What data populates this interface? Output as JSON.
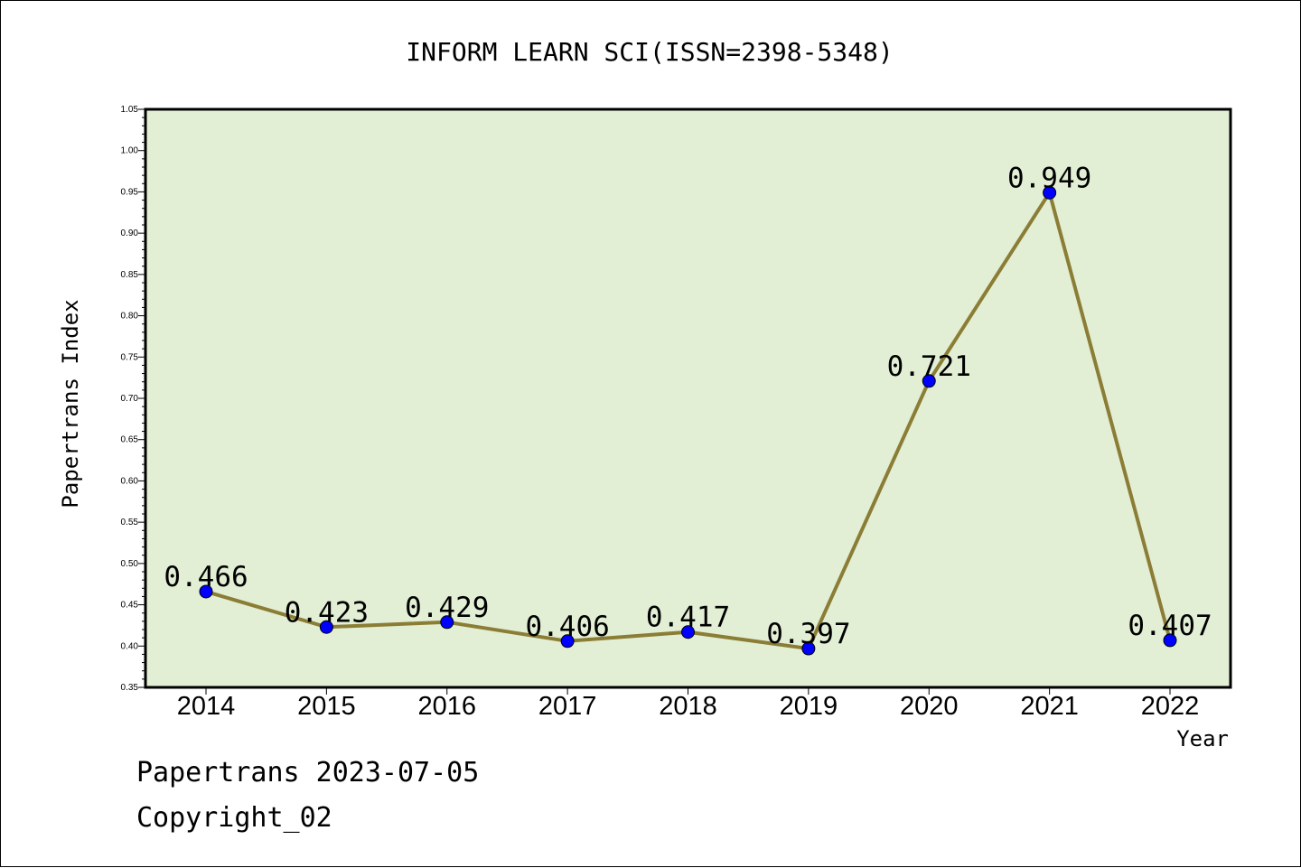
{
  "chart_data": {
    "type": "line",
    "title": "INFORM LEARN SCI(ISSN=2398-5348)",
    "xlabel": "Year",
    "ylabel": "Papertrans Index",
    "categories": [
      "2014",
      "2015",
      "2016",
      "2017",
      "2018",
      "2019",
      "2020",
      "2021",
      "2022"
    ],
    "series": [
      {
        "values": [
          0.466,
          0.423,
          0.429,
          0.406,
          0.417,
          0.397,
          0.721,
          0.949,
          0.407
        ],
        "labels": [
          "0.466",
          "0.423",
          "0.429",
          "0.406",
          "0.417",
          "0.397",
          "0.721",
          "0.949",
          "0.407"
        ],
        "line_color": "#8b7d35",
        "marker_color": "#0000ff"
      }
    ],
    "ylim": [
      0.35,
      1.05
    ],
    "yticks": [
      "0.35",
      "0.40",
      "0.45",
      "0.50",
      "0.55",
      "0.60",
      "0.65",
      "0.70",
      "0.75",
      "0.80",
      "0.85",
      "0.90",
      "0.95",
      "1.00",
      "1.05"
    ],
    "plot_background": "#e2efd5",
    "grid": false,
    "legend": "none"
  },
  "footer": {
    "date_line": "Papertrans 2023-07-05",
    "copyright": "Copyright_02"
  }
}
